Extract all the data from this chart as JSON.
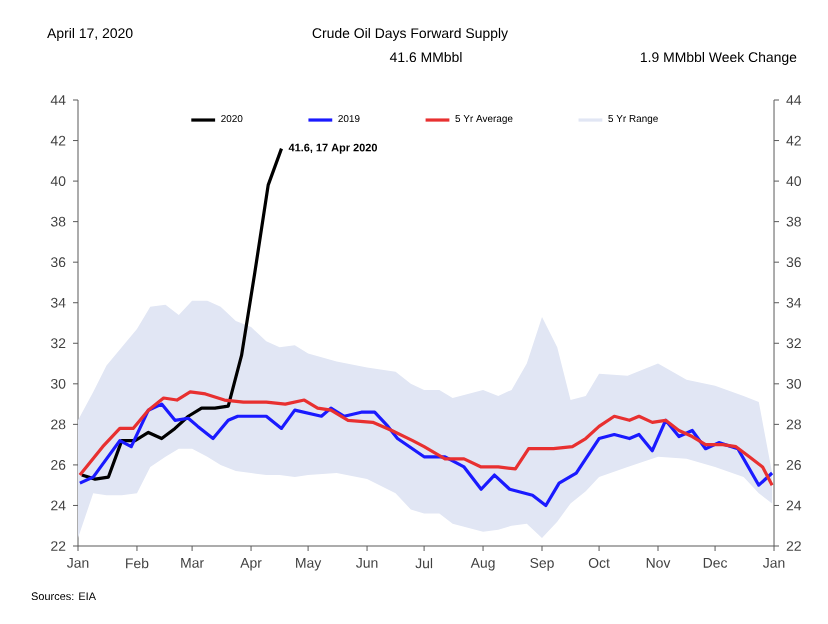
{
  "chart_data": {
    "type": "line",
    "title": "Crude Oil Days Forward Supply",
    "subtitle": "41.6 MMbbl",
    "annotations": [
      "April 17, 2020",
      "1.9 MMbbl Week Change",
      "Sources: EIA",
      {
        "text": "41.6,  17 Apr 2020",
        "x": "2020-04-17",
        "y": 41.6
      }
    ],
    "xlim": [
      "2020-01-01",
      "2021-01-01"
    ],
    "xticks": [
      {
        "value": "2020-01-01",
        "label": "Jan"
      },
      {
        "value": "2020-02-01",
        "label": "Feb"
      },
      {
        "value": "2020-03-01",
        "label": "Mar"
      },
      {
        "value": "2020-04-01",
        "label": "Apr"
      },
      {
        "value": "2020-05-01",
        "label": "May"
      },
      {
        "value": "2020-06-01",
        "label": "Jun"
      },
      {
        "value": "2020-07-01",
        "label": "Jul"
      },
      {
        "value": "2020-08-01",
        "label": "Aug"
      },
      {
        "value": "2020-09-01",
        "label": "Sep"
      },
      {
        "value": "2020-10-01",
        "label": "Oct"
      },
      {
        "value": "2020-11-01",
        "label": "Nov"
      },
      {
        "value": "2020-12-01",
        "label": "Dec"
      },
      {
        "value": "2021-01-01",
        "label": "Jan"
      }
    ],
    "ylim": [
      22,
      44
    ],
    "yticks": [
      22,
      24,
      26,
      28,
      30,
      32,
      34,
      36,
      38,
      40,
      42,
      44
    ],
    "y2lim": [
      22,
      44
    ],
    "y2ticks": [
      22,
      24,
      26,
      28,
      30,
      32,
      34,
      36,
      38,
      40,
      42,
      44
    ],
    "legend": "top",
    "grid": false,
    "marker": "none",
    "line_style": "solid",
    "series": [
      {
        "name": "2020",
        "color": "#000000",
        "x": [
          "2020-01-03",
          "2020-01-10",
          "2020-01-17",
          "2020-01-24",
          "2020-01-31",
          "2020-02-07",
          "2020-02-14",
          "2020-02-21",
          "2020-02-28",
          "2020-03-06",
          "2020-03-13",
          "2020-03-20",
          "2020-03-27",
          "2020-04-03",
          "2020-04-10",
          "2020-04-17"
        ],
        "values": [
          25.5,
          25.3,
          25.4,
          27.2,
          27.2,
          27.6,
          27.3,
          27.8,
          28.4,
          28.8,
          28.8,
          28.9,
          31.4,
          35.5,
          39.8,
          41.6
        ]
      },
      {
        "name": "2019",
        "color": "#1a1aff",
        "x": [
          "2020-01-02",
          "2020-01-09",
          "2020-01-23",
          "2020-01-29",
          "2020-02-07",
          "2020-02-14",
          "2020-02-21",
          "2020-02-28",
          "2020-03-04",
          "2020-03-12",
          "2020-03-20",
          "2020-03-25",
          "2020-04-09",
          "2020-04-17",
          "2020-04-24",
          "2020-05-08",
          "2020-05-13",
          "2020-05-20",
          "2020-05-29",
          "2020-06-05",
          "2020-06-12",
          "2020-06-17",
          "2020-07-01",
          "2020-07-12",
          "2020-07-22",
          "2020-07-31",
          "2020-08-07",
          "2020-08-15",
          "2020-08-27",
          "2020-09-03",
          "2020-09-10",
          "2020-09-19",
          "2020-10-01",
          "2020-10-09",
          "2020-10-17",
          "2020-10-22",
          "2020-10-29",
          "2020-11-05",
          "2020-11-12",
          "2020-11-19",
          "2020-11-26",
          "2020-12-03",
          "2020-12-13",
          "2020-12-24",
          "2020-12-31"
        ],
        "values": [
          25.1,
          25.4,
          27.2,
          26.9,
          28.7,
          29.0,
          28.2,
          28.3,
          27.9,
          27.3,
          28.2,
          28.4,
          28.4,
          27.8,
          28.7,
          28.4,
          28.8,
          28.4,
          28.6,
          28.6,
          27.9,
          27.3,
          26.4,
          26.4,
          25.9,
          24.8,
          25.5,
          24.8,
          24.5,
          24.0,
          25.1,
          25.6,
          27.3,
          27.5,
          27.3,
          27.5,
          26.7,
          28.2,
          27.4,
          27.7,
          26.8,
          27.1,
          26.8,
          25.0,
          25.6
        ]
      },
      {
        "name": "5 Yr Average",
        "color": "#e83030",
        "x": [
          "2020-01-02",
          "2020-01-14",
          "2020-01-23",
          "2020-01-30",
          "2020-02-07",
          "2020-02-15",
          "2020-02-22",
          "2020-02-29",
          "2020-03-08",
          "2020-03-18",
          "2020-03-28",
          "2020-04-09",
          "2020-04-19",
          "2020-04-29",
          "2020-05-06",
          "2020-05-13",
          "2020-05-22",
          "2020-06-04",
          "2020-06-14",
          "2020-06-25",
          "2020-07-01",
          "2020-07-12",
          "2020-07-22",
          "2020-07-31",
          "2020-08-09",
          "2020-08-18",
          "2020-08-25",
          "2020-09-07",
          "2020-09-17",
          "2020-09-24",
          "2020-10-01",
          "2020-10-09",
          "2020-10-17",
          "2020-10-22",
          "2020-10-29",
          "2020-11-05",
          "2020-11-12",
          "2020-11-19",
          "2020-11-26",
          "2020-12-05",
          "2020-12-12",
          "2020-12-19",
          "2020-12-26",
          "2020-12-31"
        ],
        "values": [
          25.5,
          26.9,
          27.8,
          27.8,
          28.7,
          29.3,
          29.2,
          29.6,
          29.5,
          29.2,
          29.1,
          29.1,
          29.0,
          29.2,
          28.8,
          28.7,
          28.2,
          28.1,
          27.7,
          27.2,
          26.9,
          26.3,
          26.3,
          25.9,
          25.9,
          25.8,
          26.8,
          26.8,
          26.9,
          27.3,
          27.9,
          28.4,
          28.2,
          28.4,
          28.1,
          28.2,
          27.7,
          27.4,
          27.0,
          27.0,
          26.9,
          26.4,
          25.9,
          25.0
        ]
      },
      {
        "name": "5 Yr Range",
        "type": "area",
        "color": "#e1e6f4",
        "values": [
          null,
          null,
          null,
          null,
          null,
          null,
          null,
          null,
          null,
          null,
          null,
          null,
          null,
          null,
          null,
          null,
          null,
          null,
          null,
          null,
          null,
          null,
          null,
          null,
          null,
          null,
          null,
          null,
          null,
          null,
          null,
          null,
          null,
          null,
          null,
          null,
          null,
          null,
          null,
          null
        ],
        "x": [
          "2020-01-01",
          "2020-01-09",
          "2020-01-16",
          "2020-01-24",
          "2020-02-01",
          "2020-02-08",
          "2020-02-16",
          "2020-02-23",
          "2020-03-01",
          "2020-03-09",
          "2020-03-16",
          "2020-03-24",
          "2020-04-01",
          "2020-04-09",
          "2020-04-16",
          "2020-04-24",
          "2020-05-01",
          "2020-05-16",
          "2020-06-01",
          "2020-06-16",
          "2020-06-24",
          "2020-07-01",
          "2020-07-09",
          "2020-07-16",
          "2020-08-01",
          "2020-08-09",
          "2020-08-16",
          "2020-08-24",
          "2020-09-01",
          "2020-09-09",
          "2020-09-16",
          "2020-09-24",
          "2020-10-01",
          "2020-10-16",
          "2020-11-01",
          "2020-11-16",
          "2020-12-01",
          "2020-12-16",
          "2020-12-24",
          "2020-12-31"
        ],
        "upper": [
          28.2,
          29.6,
          30.9,
          31.8,
          32.7,
          33.8,
          33.9,
          33.4,
          34.1,
          34.1,
          33.8,
          33.1,
          32.8,
          32.1,
          31.8,
          31.9,
          31.5,
          31.1,
          30.8,
          30.6,
          30.0,
          29.7,
          29.7,
          29.3,
          29.7,
          29.4,
          29.7,
          31.0,
          33.3,
          31.8,
          29.2,
          29.4,
          30.5,
          30.4,
          31.0,
          30.2,
          29.9,
          29.4,
          29.1,
          25.6
        ],
        "lower": [
          22.4,
          24.6,
          24.5,
          24.5,
          24.6,
          25.9,
          26.4,
          26.8,
          26.8,
          26.4,
          26.0,
          25.7,
          25.6,
          25.5,
          25.5,
          25.4,
          25.5,
          25.6,
          25.3,
          24.6,
          23.8,
          23.6,
          23.6,
          23.1,
          22.7,
          22.8,
          23.0,
          23.1,
          22.4,
          23.2,
          24.1,
          24.7,
          25.4,
          25.9,
          26.4,
          26.3,
          25.9,
          25.4,
          24.6,
          24.1
        ]
      }
    ]
  }
}
